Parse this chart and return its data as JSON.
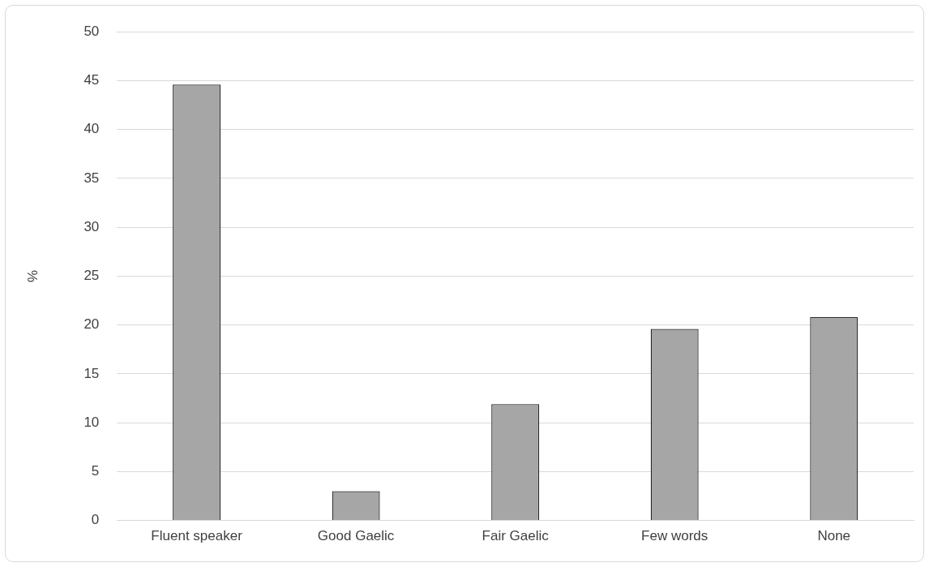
{
  "chart_data": {
    "type": "bar",
    "ylabel": "%",
    "categories": [
      "Fluent speaker",
      "Good Gaelic",
      "Fair Gaelic",
      "Few words",
      "None"
    ],
    "values": [
      44.6,
      3.0,
      11.9,
      19.6,
      20.8
    ],
    "color": "#a6a6a6",
    "ylim": [
      0,
      50
    ],
    "yticks": [
      0,
      5,
      10,
      15,
      20,
      25,
      30,
      35,
      40,
      45,
      50
    ],
    "grid": "y",
    "legend": false
  }
}
